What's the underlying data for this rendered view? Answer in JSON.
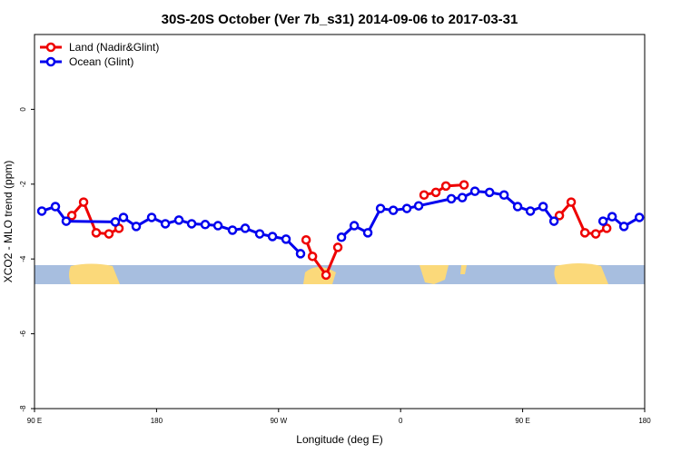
{
  "chart_data": {
    "type": "line",
    "title": "30S-20S October (Ver 7b_s31)   2014-09-06 to 2017-03-31",
    "xlabel": "Longitude (deg E)",
    "ylabel": "XCO2 - MLO trend (ppm)",
    "xlim": [
      90,
      540
    ],
    "xticks": [
      {
        "value": 90,
        "label": "90 E"
      },
      180,
      {
        "value": 270,
        "label": "90 W"
      },
      {
        "value": 360,
        "label": "0"
      },
      {
        "value": 450,
        "label": "90 E"
      },
      {
        "value": 540,
        "label": "180"
      }
    ],
    "ylim": [
      -8,
      2
    ],
    "yticks": [
      0,
      -2,
      -4,
      -6,
      -8
    ],
    "legend": "upper left",
    "series": [
      {
        "name": "Land (Nadir&Glint)",
        "color": "#ee0000",
        "x": [
          117.5,
          126.2,
          135.5,
          144.9,
          152.3,
          null,
          290.3,
          295,
          305,
          313.7,
          null,
          377.3,
          386,
          393.4,
          406.8,
          null,
          477.1,
          485.8,
          495.9,
          503.9,
          512
        ],
        "values": [
          -2.84,
          -2.48,
          -3.3,
          -3.33,
          -3.18,
          null,
          -3.49,
          -3.93,
          -4.43,
          -3.69,
          null,
          -2.29,
          -2.22,
          -2.05,
          -2.02,
          null,
          -2.84,
          -2.48,
          -3.3,
          -3.33,
          -3.18
        ]
      },
      {
        "name": "Ocean (Glint)",
        "color": "#0000ee",
        "x": [
          95.4,
          105.4,
          113.4,
          149.6,
          155.6,
          165,
          176.4,
          186.5,
          196.5,
          205.9,
          215.9,
          225.3,
          236,
          245.4,
          256.1,
          265.5,
          275.5,
          286.2,
          null,
          316.4,
          325.8,
          335.8,
          345.2,
          354.6,
          364.6,
          373.3,
          397.4,
          405.5,
          414.8,
          425.6,
          436.3,
          446.3,
          455.7,
          465.1,
          473.1,
          null,
          509.3,
          516,
          524.7,
          536.1
        ],
        "values": [
          -2.72,
          -2.6,
          -2.99,
          -3.01,
          -2.89,
          -3.13,
          -2.89,
          -3.06,
          -2.96,
          -3.06,
          -3.08,
          -3.11,
          -3.23,
          -3.18,
          -3.33,
          -3.4,
          -3.47,
          -3.86,
          null,
          -3.42,
          -3.11,
          -3.3,
          -2.65,
          -2.7,
          -2.65,
          -2.58,
          -2.39,
          -2.36,
          -2.19,
          -2.22,
          -2.29,
          -2.6,
          -2.72,
          -2.6,
          -2.99,
          null,
          -2.99,
          -2.87,
          -3.13,
          -2.89
        ]
      }
    ]
  }
}
